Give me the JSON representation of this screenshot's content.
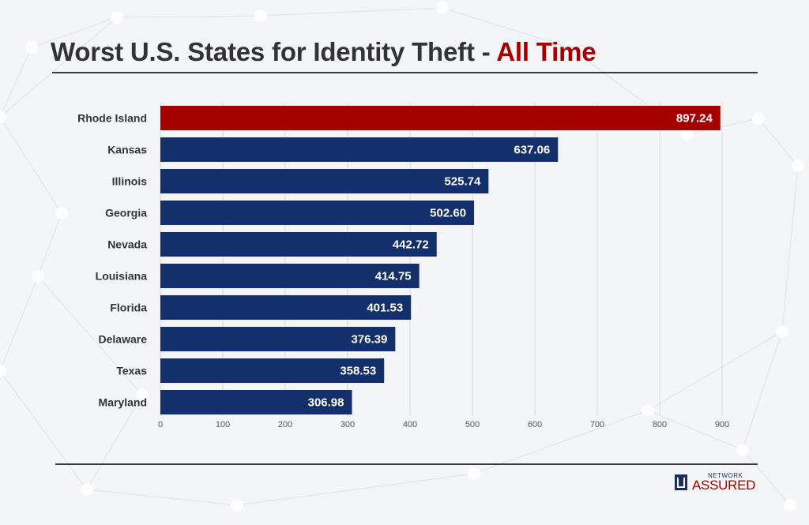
{
  "header": {
    "title_main": "Worst U.S. States for Identity Theft - ",
    "title_accent": "All Time"
  },
  "colors": {
    "highlight": "#a50000",
    "bar": "#13306a",
    "grid": "#d9d9d9"
  },
  "chart_data": {
    "type": "bar",
    "orientation": "horizontal",
    "categories": [
      "Rhode Island",
      "Kansas",
      "Illinois",
      "Georgia",
      "Nevada",
      "Louisiana",
      "Florida",
      "Delaware",
      "Texas",
      "Maryland"
    ],
    "values": [
      897.24,
      637.06,
      525.74,
      502.6,
      442.72,
      414.75,
      401.53,
      376.39,
      358.53,
      306.98
    ],
    "value_labels": [
      "897.24",
      "637.06",
      "525.74",
      "502.60",
      "442.72",
      "414.75",
      "401.53",
      "376.39",
      "358.53",
      "306.98"
    ],
    "highlight_index": 0,
    "title": "Worst U.S. States for Identity Theft - All Time",
    "xlabel": "",
    "ylabel": "",
    "xlim": [
      0,
      900
    ],
    "xticks": [
      0,
      100,
      200,
      300,
      400,
      500,
      600,
      700,
      800,
      900
    ],
    "grid": true,
    "legend": "none"
  },
  "logo": {
    "small_text": "NETWORK",
    "big_text": "ASSURED",
    "icon": "network-assured-logo-icon"
  }
}
